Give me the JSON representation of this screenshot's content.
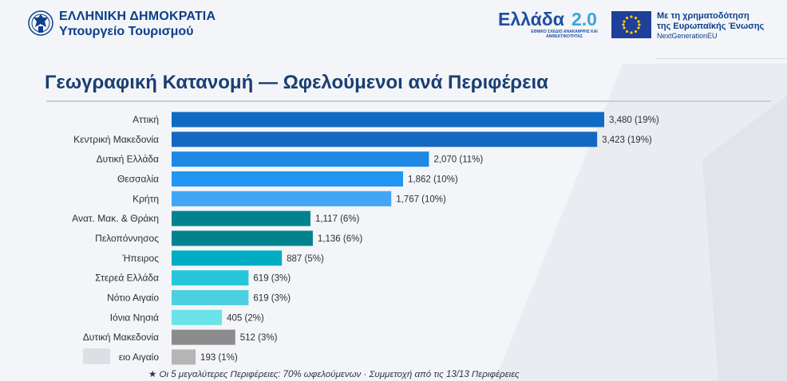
{
  "header": {
    "gov_name": "ΕΛΛΗΝΙΚΗ ΔΗΜΟΚΡΑΤΙΑ",
    "ministry": "Υπουργείο Τουρισμού",
    "logo_icon": "greek-coat-of-arms-icon",
    "ellada_word": "Ελλάδα",
    "ellada_version": "2.0",
    "ellada_sub": "ΕΘΝΙΚΟ ΣΧΕΔΙΟ ΑΝΑΚΑΜΨΗΣ ΚΑΙ ΑΝΘΕΚΤΙΚΟΤΗΤΑΣ",
    "eu_line1": "Με τη χρηματοδότηση",
    "eu_line2": "της Ευρωπαϊκής Ένωσης",
    "eu_nge": "NextGenerationEU",
    "eu_flag_icon": "eu-flag-icon",
    "colors": {
      "brand_blue": "#0d3f8a",
      "ellada_blue": "#1f4ea3",
      "ellada_cyan": "#3aa7d8"
    }
  },
  "title": "Γεωγραφική Κατανομή — Ωφελούμενοι ανά Περιφέρεια",
  "chart_data": {
    "type": "bar",
    "orientation": "horizontal",
    "categories": [
      "Αττική",
      "Κεντρική Μακεδονία",
      "Δυτική Ελλάδα",
      "Θεσσαλία",
      "Κρήτη",
      "Ανατ. Μακ. & Θράκη",
      "Πελοπόννησος",
      "Ήπειρος",
      "Στερεά Ελλάδα",
      "Νότιο Αιγαίο",
      "Ιόνια Νησιά",
      "Δυτική Μακεδονία",
      "ειο Αιγαίο"
    ],
    "values": [
      3480,
      3423,
      2070,
      1862,
      1767,
      1117,
      1136,
      887,
      619,
      619,
      405,
      512,
      193
    ],
    "value_labels": [
      "3,480",
      "3,423",
      "2,070",
      "1,862",
      "1,767",
      "1,117",
      "1,136",
      "887",
      "619",
      "619",
      "405",
      "512",
      "193"
    ],
    "percent_labels": [
      "(19%)",
      "(19%)",
      "(11%)",
      "(10%)",
      "(10%)",
      "(6%)",
      "(6%)",
      "(5%)",
      "(3%)",
      "(3%)",
      "(2%)",
      "(3%)",
      "(1%)"
    ],
    "colors": [
      "#0f6bc4",
      "#1468c2",
      "#1e88e5",
      "#2196f3",
      "#42a5f5",
      "#00838f",
      "#00838f",
      "#00acc1",
      "#26c6da",
      "#4dd0e1",
      "#6be3e8",
      "#8c8c8c",
      "#b5b5b5"
    ],
    "xlim": [
      0,
      3480
    ],
    "grid": false,
    "legend": "none",
    "xlabel": "",
    "ylabel": ""
  },
  "footnote": "★  Οι 5 μεγαλύτερες Περιφέρειες: 70% ωφελούμενων  ·  Συμμετοχή από τις 13/13 Περιφέρειες"
}
